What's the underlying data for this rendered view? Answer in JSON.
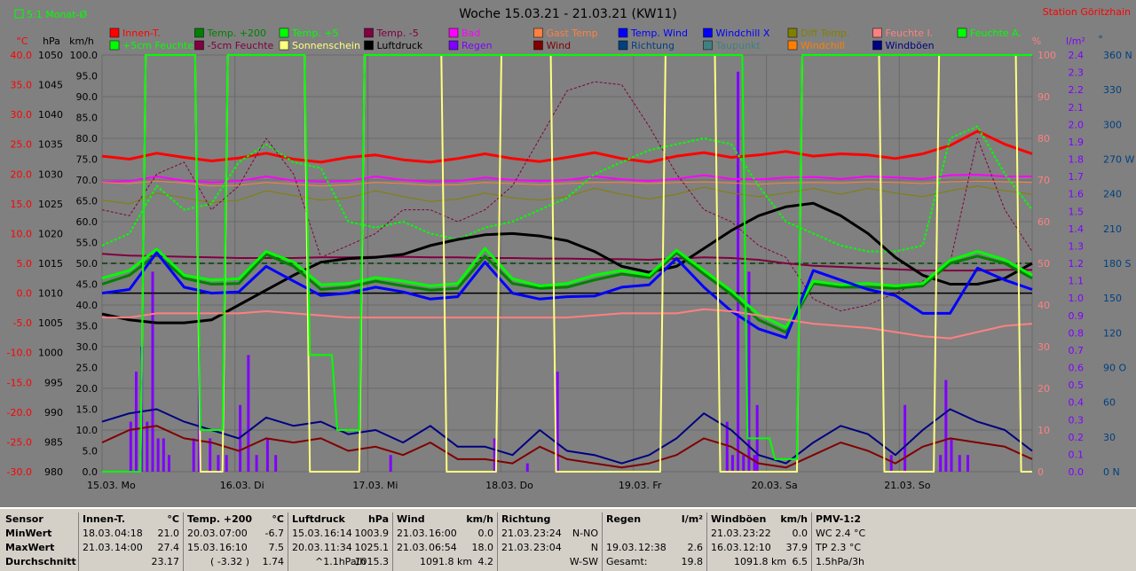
{
  "header": {
    "title": "Woche 15.03.21 - 21.03.21 (KW11)",
    "station": "Station Göritzhain",
    "checkbox_label": "5:1 Monat-Ø"
  },
  "units": {
    "left": [
      "°C",
      "hPa",
      "km/h"
    ],
    "right": [
      "%",
      "l/m²",
      "°"
    ]
  },
  "legend": [
    {
      "label": "Innen-T.",
      "color": "#ff0000"
    },
    {
      "label": "Temp. +200",
      "color": "#008000"
    },
    {
      "label": "Temp. +5",
      "color": "#00ff00"
    },
    {
      "label": "Temp. -5",
      "color": "#800040"
    },
    {
      "label": "Bad",
      "color": "#ff00ff"
    },
    {
      "label": "Gast Temp",
      "color": "#ff8040"
    },
    {
      "label": "Temp. Wind",
      "color": "#0000ff"
    },
    {
      "label": "Windchill X",
      "color": "#0000ff"
    },
    {
      "label": "Diff Temp.",
      "color": "#808000"
    },
    {
      "label": "Feuchte I.",
      "color": "#ff8080"
    },
    {
      "label": "Feuchte A.",
      "color": "#00ff00"
    },
    {
      "label": "+5cm Feuchte",
      "color": "#00ff00"
    },
    {
      "label": "-5cm Feuchte",
      "color": "#800040"
    },
    {
      "label": "Sonnenschein",
      "color": "#ffff80"
    },
    {
      "label": "Luftdruck",
      "color": "#000000"
    },
    {
      "label": "Regen",
      "color": "#8000ff"
    },
    {
      "label": "Wind",
      "color": "#800000"
    },
    {
      "label": "Richtung",
      "color": "#004080"
    },
    {
      "label": "Taupunkt",
      "color": "#408080"
    },
    {
      "label": "Windchill",
      "color": "#ff8000"
    },
    {
      "label": "Windböen",
      "color": "#000080"
    }
  ],
  "chart_data": {
    "type": "line",
    "title": "Woche 15.03.21 - 21.03.21 (KW11)",
    "x_ticks": [
      "15.03. Mo",
      "16.03. Di",
      "17.03. Mi",
      "18.03. Do",
      "19.03. Fr",
      "20.03. Sa",
      "21.03. So"
    ],
    "axes": {
      "temp_c": {
        "ticks": [
          "40.0",
          "35.0",
          "30.0",
          "25.0",
          "20.0",
          "15.0",
          "10.0",
          "5.0",
          "0.0",
          "-5.0",
          "-10.0",
          "-15.0",
          "-20.0",
          "-25.0",
          "-30.0"
        ],
        "range": [
          -30,
          40
        ]
      },
      "pressure_hpa": {
        "ticks": [
          "1050",
          "1045",
          "1040",
          "1035",
          "1030",
          "1025",
          "1020",
          "1015",
          "1010",
          "1005",
          "1000",
          "995",
          "990",
          "985",
          "980"
        ],
        "range": [
          980,
          1050
        ]
      },
      "wind_kmh": {
        "ticks": [
          "100.0",
          "95.0",
          "90.0",
          "85.0",
          "80.0",
          "75.0",
          "70.0",
          "65.0",
          "60.0",
          "55.0",
          "50.0",
          "45.0",
          "40.0",
          "35.0",
          "30.0",
          "25.0",
          "20.0",
          "15.0",
          "10.0",
          "5.0",
          "0.0"
        ],
        "range": [
          0,
          100
        ]
      },
      "humidity_pct": {
        "ticks": [
          "100",
          "90",
          "80",
          "70",
          "60",
          "50",
          "40",
          "30",
          "20",
          "10",
          "0"
        ],
        "range": [
          0,
          100
        ]
      },
      "rain_lm2": {
        "ticks": [
          "2.4",
          "2.3",
          "2.2",
          "2.1",
          "2.0",
          "1.9",
          "1.8",
          "1.7",
          "1.6",
          "1.5",
          "1.4",
          "1.3",
          "1.2",
          "1.1",
          "1.0",
          "0.9",
          "0.8",
          "0.7",
          "0.6",
          "0.5",
          "0.4",
          "0.3",
          "0.2",
          "0.1",
          "0.0"
        ],
        "range": [
          0,
          2.5
        ]
      },
      "direction_deg": {
        "ticks": [
          "360 N",
          "330",
          "300",
          "270 W",
          "240",
          "210",
          "180 S",
          "150",
          "120",
          "90 O",
          "60",
          "30",
          "0 N"
        ],
        "range": [
          0,
          360
        ]
      }
    },
    "grid": true,
    "series": [
      {
        "name": "Innen-T.",
        "axis": "temp_c",
        "color": "#ff0000",
        "width": 3,
        "values": [
          23.0,
          22.5,
          23.5,
          22.8,
          22.2,
          22.7,
          23.5,
          22.5,
          22.0,
          22.8,
          23.2,
          22.4,
          22.0,
          22.6,
          23.4,
          22.6,
          22.1,
          22.8,
          23.6,
          22.6,
          22.0,
          23.0,
          23.6,
          22.8,
          23.2,
          23.8,
          23.0,
          23.4,
          23.2,
          22.6,
          23.4,
          24.8,
          27.2,
          25.0,
          23.4
        ]
      },
      {
        "name": "Bad",
        "axis": "temp_c",
        "color": "#ff00ff",
        "width": 2,
        "values": [
          18.6,
          18.8,
          19.6,
          18.9,
          18.6,
          18.8,
          19.6,
          18.9,
          18.7,
          18.8,
          19.6,
          19.0,
          18.7,
          18.8,
          19.4,
          19.0,
          18.8,
          19.0,
          19.6,
          19.1,
          18.8,
          19.2,
          19.8,
          19.2,
          19.1,
          19.4,
          19.5,
          19.2,
          19.6,
          19.4,
          19.2,
          19.8,
          19.9,
          19.6,
          19.6
        ]
      },
      {
        "name": "Gast Temp",
        "axis": "temp_c",
        "color": "#ff8040",
        "width": 1,
        "values": [
          18.6,
          18.4,
          18.8,
          18.5,
          18.0,
          18.1,
          18.6,
          18.3,
          18.0,
          18.2,
          18.6,
          18.4,
          18.1,
          18.2,
          18.6,
          18.4,
          18.2,
          18.4,
          18.6,
          18.6,
          18.4,
          18.6,
          18.7,
          18.5,
          18.3,
          18.5,
          18.6,
          18.5,
          18.7,
          18.6,
          18.4,
          18.7,
          18.8,
          18.7,
          18.6
        ]
      },
      {
        "name": "Diff Temp.",
        "axis": "temp_c",
        "color": "#808000",
        "width": 1,
        "values": [
          15.6,
          15.0,
          16.8,
          16.0,
          15.2,
          15.6,
          17.2,
          16.4,
          15.6,
          16.0,
          17.2,
          16.2,
          15.4,
          15.8,
          16.8,
          16.0,
          15.6,
          16.2,
          17.6,
          16.6,
          15.8,
          16.6,
          17.8,
          16.8,
          16.2,
          16.8,
          17.6,
          16.6,
          17.6,
          16.8,
          16.2,
          17.2,
          18.0,
          17.2,
          16.6
        ]
      },
      {
        "name": "Feuchte A.",
        "axis": "temp_c",
        "color": "#00ff00",
        "width": 2,
        "dash": "3,2",
        "values": [
          8.0,
          10.0,
          18.0,
          14.0,
          15.0,
          22.0,
          25.0,
          22.0,
          21.0,
          12.0,
          11.0,
          12.0,
          10.0,
          9.0,
          11.0,
          12.0,
          14.0,
          16.0,
          20.0,
          22.0,
          24.0,
          25.0,
          26.0,
          25.0,
          18.0,
          12.0,
          10.0,
          8.0,
          7.0,
          7.0,
          8.0,
          26.0,
          28.0,
          20.0,
          14.0
        ]
      },
      {
        "name": "-5cm Feuchte",
        "axis": "temp_c",
        "color": "#800040",
        "width": 1,
        "dash": "3,2",
        "values": [
          14.0,
          13.0,
          20.0,
          22.0,
          14.0,
          18.0,
          26.0,
          20.0,
          6.0,
          8.0,
          10.0,
          14.0,
          14.0,
          12.0,
          14.0,
          18.0,
          26.0,
          34.0,
          35.5,
          35.0,
          28.0,
          20.0,
          14.0,
          12.0,
          8.0,
          6.0,
          -1.0,
          -3.0,
          -2.0,
          0.0,
          2.0,
          5.0,
          26.0,
          14.0,
          7.0
        ]
      },
      {
        "name": "Temp. -5",
        "axis": "temp_c",
        "color": "#800040",
        "width": 2,
        "values": [
          6.6,
          6.3,
          6.2,
          6.1,
          6.0,
          5.9,
          5.9,
          5.9,
          6.0,
          6.0,
          6.1,
          6.1,
          6.0,
          6.0,
          5.9,
          5.9,
          5.8,
          5.8,
          5.7,
          5.7,
          5.6,
          5.8,
          6.0,
          5.9,
          5.6,
          5.0,
          4.6,
          4.4,
          4.2,
          4.0,
          3.8,
          3.8,
          3.8,
          3.9,
          3.9
        ]
      },
      {
        "name": "Luftdruck",
        "axis": "pressure_hpa",
        "color": "#000000",
        "width": 3,
        "values": [
          1006.5,
          1005.5,
          1005.0,
          1005.0,
          1005.5,
          1008.0,
          1010.5,
          1013.0,
          1015.2,
          1015.8,
          1016.0,
          1016.5,
          1018.0,
          1019.0,
          1019.8,
          1020.0,
          1019.6,
          1018.8,
          1017.0,
          1014.5,
          1013.5,
          1014.5,
          1017.5,
          1020.5,
          1023.0,
          1024.5,
          1025.1,
          1023.0,
          1020.0,
          1016.0,
          1013.0,
          1011.5,
          1011.5,
          1012.5,
          1015.0
        ]
      },
      {
        "name": "Temp. +200",
        "axis": "temp_c",
        "color": "#008000",
        "width": 3,
        "values": [
          1.5,
          3.0,
          6.5,
          2.5,
          1.5,
          1.6,
          6.5,
          4.5,
          0.6,
          1.0,
          2.0,
          1.2,
          0.5,
          0.8,
          6.2,
          1.6,
          0.8,
          1.0,
          2.2,
          3.2,
          2.6,
          6.8,
          3.2,
          -0.2,
          -4.5,
          -6.6,
          1.6,
          1.0,
          1.0,
          0.8,
          1.2,
          5.0,
          6.2,
          5.0,
          2.5
        ]
      },
      {
        "name": "Temp. +5",
        "axis": "temp_c",
        "color": "#00ff00",
        "width": 3,
        "values": [
          2.5,
          3.8,
          7.4,
          3.0,
          2.2,
          2.4,
          7.0,
          5.2,
          1.4,
          1.6,
          2.6,
          2.0,
          1.2,
          1.6,
          7.5,
          2.4,
          1.2,
          1.6,
          3.0,
          3.8,
          3.0,
          7.2,
          3.8,
          0.4,
          -3.6,
          -5.8,
          2.0,
          1.4,
          1.6,
          1.2,
          1.6,
          5.5,
          7.0,
          5.6,
          3.0
        ]
      },
      {
        "name": "Temp. Wind",
        "axis": "temp_c",
        "color": "#0000ff",
        "width": 3,
        "values": [
          0.0,
          0.6,
          6.8,
          1.0,
          0.0,
          0.2,
          4.5,
          2.0,
          -0.4,
          0.0,
          1.0,
          0.2,
          -1.0,
          -0.6,
          5.2,
          0.0,
          -1.0,
          -0.6,
          -0.5,
          1.0,
          1.4,
          5.8,
          1.0,
          -3.0,
          -6.0,
          -7.5,
          3.8,
          2.2,
          0.6,
          -0.4,
          -3.4,
          -3.4,
          4.2,
          2.2,
          0.6
        ]
      },
      {
        "name": "Feuchte I.",
        "axis": "humidity_pct",
        "color": "#ff8080",
        "width": 2,
        "values": [
          37.0,
          37.0,
          38.0,
          38.0,
          38.0,
          38.0,
          38.5,
          38.0,
          37.5,
          37.0,
          37.0,
          37.0,
          37.0,
          37.0,
          37.0,
          37.0,
          37.0,
          37.0,
          37.5,
          38.0,
          38.0,
          38.0,
          39.0,
          38.5,
          37.5,
          36.5,
          35.5,
          35.0,
          34.5,
          33.5,
          32.5,
          32.0,
          33.5,
          35.0,
          35.5
        ]
      },
      {
        "name": "Wind",
        "axis": "wind_kmh",
        "color": "#800000",
        "width": 2,
        "values": [
          7.0,
          10.0,
          11.0,
          8.0,
          7.0,
          5.0,
          8.0,
          7.0,
          8.0,
          5.0,
          6.0,
          4.0,
          7.0,
          3.0,
          3.0,
          2.0,
          6.0,
          3.0,
          2.0,
          1.0,
          2.0,
          4.0,
          8.0,
          6.0,
          2.0,
          1.0,
          4.0,
          7.0,
          5.0,
          2.0,
          6.0,
          8.0,
          7.0,
          6.0,
          3.0
        ]
      },
      {
        "name": "Windböen",
        "axis": "wind_kmh",
        "color": "#000080",
        "width": 2,
        "values": [
          12.0,
          14.0,
          15.0,
          12.0,
          10.0,
          8.0,
          13.0,
          11.0,
          12.0,
          9.0,
          10.0,
          7.0,
          11.0,
          6.0,
          6.0,
          4.0,
          10.0,
          5.0,
          4.0,
          2.0,
          4.0,
          8.0,
          14.0,
          10.0,
          4.0,
          2.0,
          7.0,
          11.0,
          9.0,
          4.0,
          10.0,
          15.0,
          12.0,
          10.0,
          5.0
        ]
      },
      {
        "name": "Sonnenschein",
        "axis": "wind_kmh",
        "color": "#ffff80",
        "width": 2,
        "values": [
          0,
          0,
          100,
          100,
          0,
          100,
          100,
          100,
          0,
          0,
          100,
          100,
          100,
          0,
          0,
          100,
          100,
          0,
          0,
          0,
          0,
          100,
          100,
          0,
          0,
          0,
          100,
          100,
          100,
          0,
          0,
          100,
          100,
          100,
          0
        ],
        "step": true
      },
      {
        "name": "+5cm Feuchte",
        "axis": "wind_kmh",
        "color": "#00ff00",
        "width": 2,
        "values": [
          0,
          0,
          100,
          100,
          10,
          100,
          100,
          100,
          28,
          10,
          100,
          100,
          100,
          100,
          100,
          100,
          100,
          100,
          100,
          100,
          100,
          100,
          100,
          100,
          8,
          3,
          100,
          100,
          100,
          100,
          100,
          100,
          100,
          100,
          100
        ],
        "step": true
      }
    ],
    "rain_bars": {
      "axis": "rain_lm2",
      "color": "#8000ff",
      "x": [
        1.0,
        1.2,
        1.4,
        1.6,
        1.8,
        2.0,
        2.2,
        2.4,
        3.3,
        3.5,
        3.9,
        4.2,
        4.5,
        5.0,
        5.3,
        5.6,
        6.0,
        6.3,
        10.5,
        14.3,
        15.5,
        16.6,
        22.8,
        23.0,
        23.2,
        23.4,
        23.6,
        23.8,
        23.9,
        28.8,
        29.3,
        30.6,
        30.8,
        31.0,
        31.3,
        31.6
      ],
      "values": [
        0.3,
        0.6,
        0.75,
        0.3,
        1.2,
        0.2,
        0.2,
        0.1,
        0.2,
        0.75,
        0.2,
        0.1,
        0.1,
        0.4,
        0.7,
        0.1,
        0.2,
        0.1,
        0.1,
        0.2,
        0.05,
        0.6,
        0.3,
        0.1,
        2.4,
        0.1,
        1.2,
        0.1,
        0.4,
        0.1,
        0.4,
        0.1,
        0.55,
        0.2,
        0.1,
        0.1
      ]
    },
    "reference_lines": [
      {
        "axis": "temp_c",
        "value": 5.0,
        "color": "#004000",
        "dash": "6,4"
      },
      {
        "axis": "temp_c",
        "value": 0.0,
        "color": "#000000"
      }
    ]
  },
  "table": {
    "columns": [
      {
        "head": "Sensor",
        "unit": "",
        "rows": [
          "MinWert",
          "MaxWert",
          "Durchschnitt"
        ],
        "label_col": true
      },
      {
        "head": "Innen-T.",
        "unit": "°C",
        "rows": [
          [
            "18.03.",
            "04:18",
            "21.0"
          ],
          [
            "21.03.",
            "14:00",
            "27.4"
          ],
          [
            "",
            "",
            "23.17"
          ]
        ]
      },
      {
        "head": "Temp. +200",
        "unit": "°C",
        "rows": [
          [
            "20.03.",
            "07:00",
            "-6.7"
          ],
          [
            "15.03.",
            "16:10",
            "7.5"
          ],
          [
            "",
            "( -3.32 )",
            "1.74"
          ]
        ]
      },
      {
        "head": "Luftdruck",
        "unit": "hPa",
        "rows": [
          [
            "15.03.",
            "16:14",
            "1003.9"
          ],
          [
            "20.03.",
            "11:34",
            "1025.1"
          ],
          [
            "",
            "^1.1hPa/h",
            "1015.3"
          ]
        ]
      },
      {
        "head": "Wind",
        "unit": "km/h",
        "rows": [
          [
            "21.03.",
            "16:00",
            "0.0"
          ],
          [
            "21.03.",
            "06:54",
            "18.0"
          ],
          [
            "",
            "1091.8 km",
            "4.2"
          ]
        ]
      },
      {
        "head": "Richtung",
        "unit": "",
        "rows": [
          [
            "21.03.",
            "23:24",
            "N-NO"
          ],
          [
            "21.03.",
            "23:04",
            "N"
          ],
          [
            "",
            "",
            "W-SW"
          ]
        ]
      },
      {
        "head": "Regen",
        "unit": "l/m²",
        "rows": [
          [
            "",
            "",
            ""
          ],
          [
            "19.03.",
            "12:38",
            "2.6"
          ],
          [
            "Gesamt:",
            "",
            "19.8"
          ]
        ]
      },
      {
        "head": "Windböen",
        "unit": "km/h",
        "rows": [
          [
            "21.03.",
            "23:22",
            "0.0"
          ],
          [
            "16.03.",
            "12:10",
            "37.9"
          ],
          [
            "",
            "1091.8 km",
            "6.5"
          ]
        ]
      },
      {
        "head": "PMV-1:2",
        "unit": "",
        "rows": [
          "WC 2.4 °C",
          "TP 2.3 °C",
          "1.5hPa/3h"
        ],
        "label_col": true
      }
    ]
  }
}
